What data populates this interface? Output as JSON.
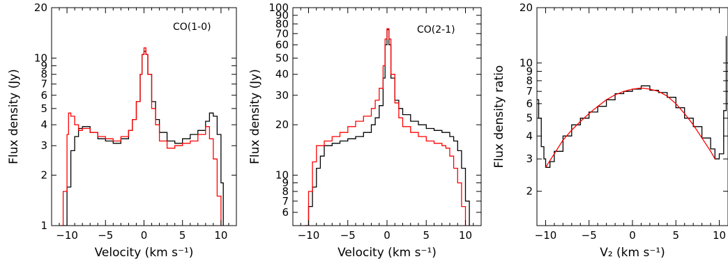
{
  "chart_data": [
    {
      "type": "line",
      "annotation": "CO(1-0)",
      "xlabel": "Velocity (km s⁻¹)",
      "ylabel": "Flux density (Jy)",
      "xlim": [
        -12,
        12
      ],
      "ylim": [
        1,
        20
      ],
      "yscale": "log",
      "x_ticks": [
        -10,
        -5,
        0,
        5,
        10
      ],
      "x_tick_labels": [
        "−10",
        "−5",
        "0",
        "5",
        "10"
      ],
      "y_ticks": [
        1,
        2,
        3,
        4,
        5,
        6,
        7,
        8,
        9,
        10,
        20
      ],
      "y_tick_labels": [
        "1",
        "2",
        "3",
        "4",
        "5",
        "6",
        "7",
        "8",
        "9",
        "10",
        "20"
      ],
      "series": [
        {
          "color": "#000000",
          "step": true,
          "x": [
            -10.5,
            -10,
            -9.5,
            -9,
            -8.5,
            -8,
            -7,
            -6,
            -5,
            -4,
            -3,
            -2,
            -1.5,
            -1,
            -0.5,
            -0.25,
            0,
            0.25,
            0.5,
            1,
            1.5,
            2,
            3,
            4,
            5,
            6,
            7,
            8,
            8.5,
            9,
            9.5,
            10,
            10.3
          ],
          "y": [
            1,
            1.7,
            2.8,
            3.4,
            3.8,
            3.9,
            3.6,
            3.3,
            3.2,
            3.1,
            3.3,
            3.7,
            4.3,
            5.5,
            8,
            10.5,
            11,
            10.5,
            8,
            5.5,
            4.3,
            3.6,
            3.2,
            3.1,
            3.3,
            3.5,
            3.7,
            4.2,
            4.7,
            4.5,
            3.5,
            1.8,
            1
          ]
        },
        {
          "color": "#ff0000",
          "step": true,
          "x": [
            -11,
            -10.5,
            -10,
            -9.8,
            -9.5,
            -9,
            -8.5,
            -8,
            -7,
            -6,
            -5,
            -4,
            -3,
            -2,
            -1.5,
            -1,
            -0.5,
            -0.25,
            0,
            0.25,
            0.5,
            1,
            1.5,
            2,
            3,
            4,
            5,
            6,
            7,
            8,
            8.5,
            9,
            9.5,
            10
          ],
          "y": [
            1,
            1.6,
            3.5,
            4.7,
            4.5,
            4.0,
            3.7,
            3.8,
            3.6,
            3.4,
            3.3,
            3.2,
            3.4,
            3.7,
            4.3,
            5.5,
            8,
            10.5,
            11.5,
            10.5,
            8,
            5,
            4.0,
            3.2,
            2.9,
            3.0,
            3.1,
            3.2,
            3.5,
            3.9,
            3.3,
            2.5,
            1.5,
            1
          ]
        }
      ]
    },
    {
      "type": "line",
      "annotation": "CO(2-1)",
      "xlabel": "Velocity (km s⁻¹)",
      "ylabel": "Flux density (Jy)",
      "xlim": [
        -12,
        12
      ],
      "ylim": [
        5,
        100
      ],
      "yscale": "log",
      "x_ticks": [
        -10,
        -5,
        0,
        5,
        10
      ],
      "x_tick_labels": [
        "−10",
        "−5",
        "0",
        "5",
        "10"
      ],
      "y_ticks": [
        6,
        7,
        8,
        9,
        10,
        20,
        30,
        40,
        50,
        60,
        70,
        80,
        90,
        100
      ],
      "y_tick_labels": [
        "6",
        "7",
        "8",
        "9",
        "10",
        "20",
        "30",
        "40",
        "50",
        "60",
        "70",
        "80",
        "90",
        "100"
      ],
      "series": [
        {
          "color": "#000000",
          "step": true,
          "x": [
            -10.5,
            -10,
            -9.5,
            -9,
            -8.5,
            -8,
            -7,
            -6,
            -5,
            -4,
            -3,
            -2,
            -1.5,
            -1,
            -0.5,
            -0.25,
            0,
            0.25,
            0.5,
            1,
            1.5,
            2,
            3,
            4,
            5,
            6,
            7,
            8,
            8.5,
            9,
            9.5,
            10,
            10.5
          ],
          "y": [
            5,
            6.5,
            8.5,
            11,
            13,
            15,
            15.5,
            16,
            16.5,
            17,
            18,
            20,
            22,
            26,
            38,
            60,
            74,
            60,
            38,
            28,
            25,
            23,
            21,
            20,
            19,
            18.5,
            18,
            17,
            16,
            14,
            11,
            7,
            5
          ]
        },
        {
          "color": "#ff0000",
          "step": true,
          "x": [
            -10.5,
            -10,
            -9.5,
            -9,
            -8,
            -7,
            -6,
            -5,
            -4,
            -3,
            -2,
            -1.5,
            -1,
            -0.5,
            -0.25,
            0,
            0.25,
            0.5,
            1,
            1.5,
            2,
            3,
            4,
            5,
            6,
            7,
            7.5,
            8,
            8.5,
            9,
            9.5,
            10
          ],
          "y": [
            5,
            8,
            12,
            15,
            16,
            17,
            18,
            19.5,
            21,
            22.5,
            25,
            28,
            33,
            45,
            65,
            75,
            65,
            40,
            27,
            22,
            19.5,
            18,
            17,
            16,
            15.5,
            15,
            14.5,
            13,
            11,
            9,
            6.5,
            5
          ]
        }
      ]
    },
    {
      "type": "line",
      "xlabel": "V₂ (km s⁻¹)",
      "ylabel": "Flux density ratio",
      "xlim": [
        -11,
        11
      ],
      "ylim": [
        1.3,
        20
      ],
      "yscale": "log",
      "x_ticks": [
        -10,
        -5,
        0,
        5,
        10
      ],
      "x_tick_labels": [
        "−10",
        "−5",
        "0",
        "5",
        "10"
      ],
      "y_ticks": [
        2,
        3,
        4,
        5,
        6,
        7,
        8,
        9,
        10,
        20
      ],
      "y_tick_labels": [
        "2",
        "3",
        "4",
        "5",
        "6",
        "7",
        "8",
        "9",
        "10",
        "20"
      ],
      "series": [
        {
          "color": "#000000",
          "step": true,
          "x": [
            -11,
            -10.8,
            -10.5,
            -10.2,
            -10,
            -9.5,
            -9,
            -8,
            -7,
            -6,
            -5,
            -4,
            -3,
            -2,
            -1,
            0,
            1,
            2,
            3,
            4,
            5,
            6,
            7,
            8,
            9,
            9.5,
            10,
            10.5,
            10.8
          ],
          "y": [
            6.3,
            5.0,
            3.5,
            3.0,
            2.7,
            2.9,
            3.3,
            4.0,
            4.6,
            5.0,
            5.4,
            5.8,
            6.3,
            6.8,
            7.0,
            7.2,
            7.5,
            7.1,
            6.9,
            6.5,
            5.7,
            5.0,
            4.5,
            3.9,
            3.4,
            3.0,
            3.2,
            5.5,
            14
          ]
        },
        {
          "color": "#ff0000",
          "step": false,
          "x": [
            -10,
            -9,
            -8,
            -7,
            -6,
            -5,
            -4,
            -3,
            -2,
            -1,
            0,
            1,
            2,
            3,
            4,
            5,
            6,
            7,
            8,
            9,
            9.5
          ],
          "y": [
            2.7,
            3.2,
            3.8,
            4.3,
            4.8,
            5.3,
            5.8,
            6.3,
            6.7,
            7.0,
            7.2,
            7.3,
            7.2,
            7.0,
            6.6,
            6.0,
            5.3,
            4.6,
            3.9,
            3.3,
            3.0
          ]
        }
      ]
    }
  ]
}
